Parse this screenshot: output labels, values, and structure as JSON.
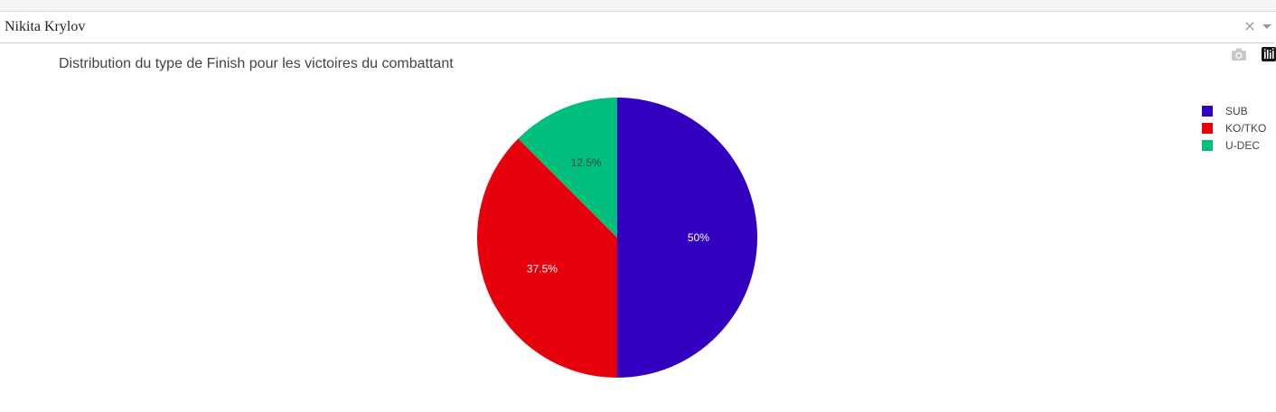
{
  "selector": {
    "value": "Nikita Krylov",
    "clear_glyph": "×"
  },
  "modebar": {
    "icons": [
      "camera-icon",
      "plotly-logo-icon"
    ]
  },
  "chart_data": {
    "type": "pie",
    "title": "Distribution du type de Finish pour les victoires du combattant",
    "labels": [
      "SUB",
      "KO/TKO",
      "U-DEC"
    ],
    "values": [
      50,
      37.5,
      12.5
    ],
    "text_labels": [
      "50%",
      "37.5%",
      "12.5%"
    ],
    "colors": [
      "#3300c0",
      "#e5000b",
      "#00be7c"
    ],
    "text_colors": [
      "#ffffff",
      "#ffffff",
      "#444444"
    ],
    "direction": "clockwise",
    "start_angle": "top",
    "legend_position": "top-right"
  }
}
